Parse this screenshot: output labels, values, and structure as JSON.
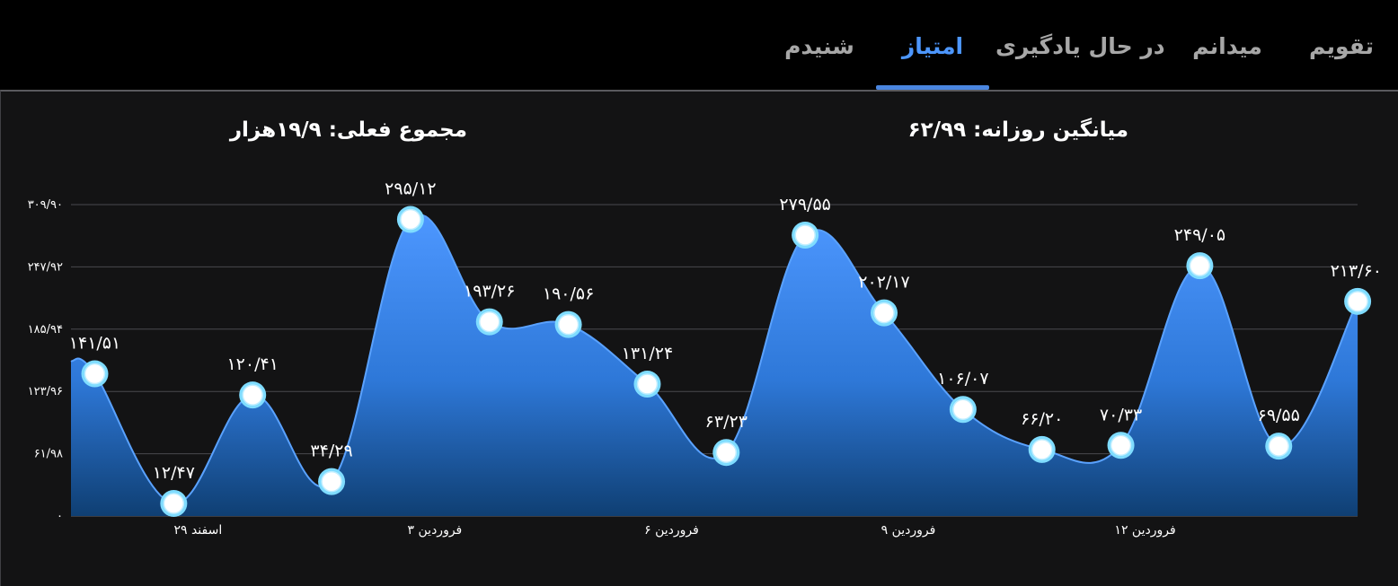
{
  "tabs": [
    {
      "label": "تقویم",
      "active": false
    },
    {
      "label": "میدانم",
      "active": false
    },
    {
      "label": "در حال یادگیری",
      "active": false
    },
    {
      "label": "امتیاز",
      "active": true
    },
    {
      "label": "شنیدم",
      "active": false
    }
  ],
  "stats": {
    "daily_average": "میانگین روزانه: ۶۲/۹۹",
    "current_total": "مجموع فعلی: ۱۹/۹هزار"
  },
  "colors": {
    "accent": "#4d97ff",
    "area_top": "#4d97ff",
    "area_bottom": "#0f3f73",
    "marker_ring": "#7fdcff"
  },
  "chart_data": {
    "type": "area",
    "title": "",
    "xlabel": "",
    "ylabel": "",
    "ylim": [
      0,
      309.9
    ],
    "y_ticks": [
      0,
      61.98,
      123.96,
      185.94,
      247.92,
      309.9
    ],
    "y_tick_labels": [
      "۰",
      "۶۱/۹۸",
      "۱۲۳/۹۶",
      "۱۸۵/۹۴",
      "۲۴۷/۹۲",
      "۳۰۹/۹۰"
    ],
    "x_tick_labels": [
      {
        "index": 1,
        "label": "۲۹ اسفند"
      },
      {
        "index": 4,
        "label": "۳ فروردین"
      },
      {
        "index": 7,
        "label": "۶ فروردین"
      },
      {
        "index": 10,
        "label": "۹ فروردین"
      },
      {
        "index": 13,
        "label": "۱۲ فروردین"
      }
    ],
    "grid": true,
    "series": [
      {
        "values": [
          141.51,
          12.47,
          120.41,
          34.29,
          295.12,
          193.26,
          190.56,
          131.24,
          63.23,
          279.55,
          202.17,
          106.07,
          66.2,
          70.33,
          249.05,
          69.55,
          213.6
        ],
        "labels": [
          "۱۴۱/۵۱",
          "۱۲/۴۷",
          "۱۲۰/۴۱",
          "۳۴/۲۹",
          "۲۹۵/۱۲",
          "۱۹۳/۲۶",
          "۱۹۰/۵۶",
          "۱۳۱/۲۴",
          "۶۳/۲۳",
          "۲۷۹/۵۵",
          "۲۰۲/۱۷",
          "۱۰۶/۰۷",
          "۶۶/۲۰",
          "۷۰/۳۳",
          "۲۴۹/۰۵",
          "۶۹/۵۵",
          "۲۱۳/۶۰"
        ]
      }
    ]
  }
}
